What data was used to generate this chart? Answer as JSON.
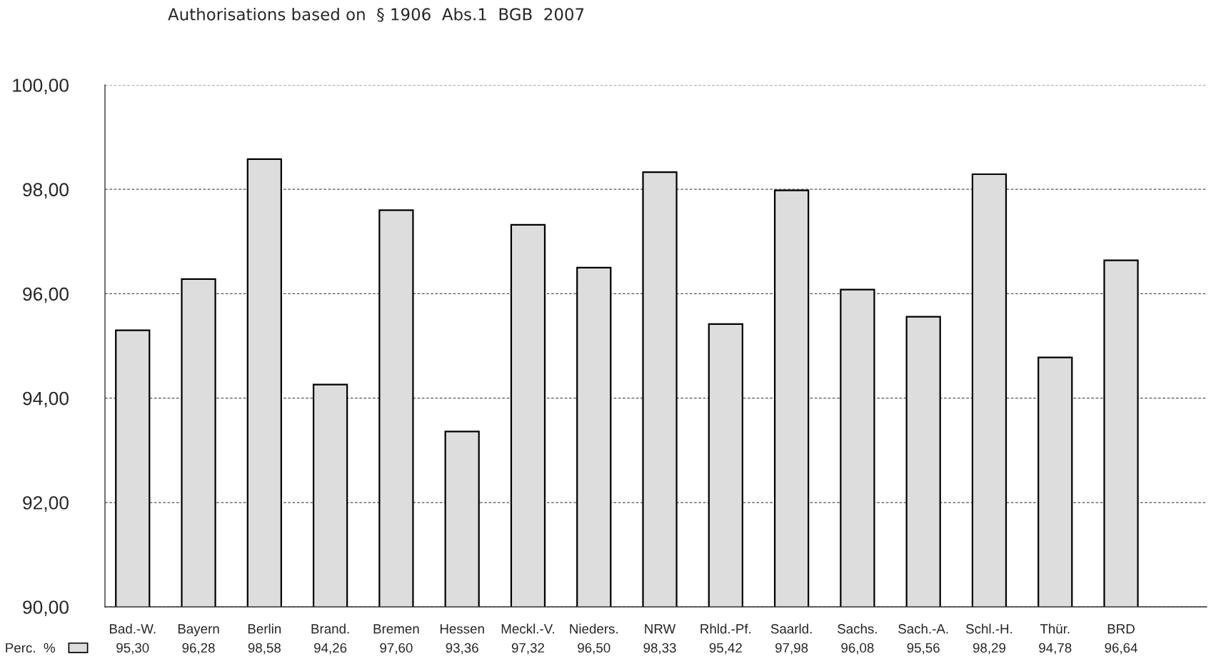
{
  "chart_data": {
    "type": "bar",
    "title": "Authorisations based on  § 1906  Abs.1  BGB  2007",
    "categories": [
      "Bad.-W.",
      "Bayern",
      "Berlin",
      "Brand.",
      "Bremen",
      "Hessen",
      "Meckl.-V.",
      "Nieders.",
      "NRW",
      "Rhld.-Pf.",
      "Saarld.",
      "Sachs.",
      "Sach.-A.",
      "Schl.-H.",
      "Thür.",
      "BRD"
    ],
    "series": [
      {
        "name": "Perc.  %",
        "color": "#dddddd",
        "values": [
          95.3,
          96.28,
          98.58,
          94.26,
          97.6,
          93.36,
          97.32,
          96.5,
          98.33,
          95.42,
          97.98,
          96.08,
          95.56,
          98.29,
          94.78,
          96.64
        ],
        "value_labels": [
          "95,30",
          "96,28",
          "98,58",
          "94,26",
          "97,60",
          "93,36",
          "97,32",
          "96,50",
          "98,33",
          "95,42",
          "97,98",
          "96,08",
          "95,56",
          "98,29",
          "94,78",
          "96,64"
        ]
      }
    ],
    "ylim": [
      90,
      100
    ],
    "yticks": [
      {
        "value": 90,
        "label": "90,00"
      },
      {
        "value": 92,
        "label": "92,00"
      },
      {
        "value": 94,
        "label": "94,00"
      },
      {
        "value": 96,
        "label": "96,00"
      },
      {
        "value": 98,
        "label": "98,00"
      },
      {
        "value": 100,
        "label": "100,00"
      }
    ],
    "grid": "y",
    "legend": "bottom left"
  }
}
